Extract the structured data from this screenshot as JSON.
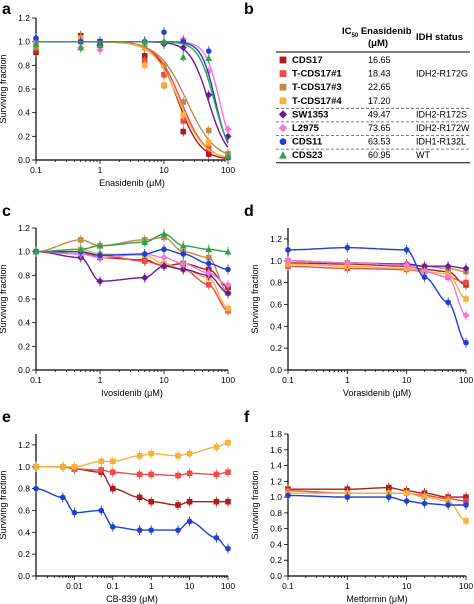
{
  "colors": {
    "CDS17": "#a81d1d",
    "T-CDS17#1": "#ee4a4a",
    "T-CDS17#3": "#c6884a",
    "T-CDS17#4": "#f6b23a",
    "SW1353": "#6a1b9a",
    "L2975": "#f07ad4",
    "CDS11": "#1f3fd1",
    "CDS23": "#2ca34a"
  },
  "table": {
    "header_ic50": "IC",
    "header_ic50_sub": "50",
    "header_ic50_rest": " Enasidenib",
    "header_unit": "(μM)",
    "header_status": "IDH status",
    "rows": [
      {
        "name": "CDS17",
        "ic50": "16.65",
        "status": "",
        "marker": "square"
      },
      {
        "name": "T-CDS17#1",
        "ic50": "18.43",
        "status": "IDH2-R172G",
        "marker": "square"
      },
      {
        "name": "T-CDS17#3",
        "ic50": "22.65",
        "status": "",
        "marker": "square"
      },
      {
        "name": "T-CDS17#4",
        "ic50": "17.20",
        "status": "",
        "marker": "square"
      },
      {
        "name": "SW1353",
        "ic50": "49.47",
        "status": "IDH2-R172S",
        "marker": "diamond"
      },
      {
        "name": "L2975",
        "ic50": "73.65",
        "status": "IDH2-R172W",
        "marker": "diamond"
      },
      {
        "name": "CDS11",
        "ic50": "63.53",
        "status": "IDH1-R132L",
        "marker": "circle"
      },
      {
        "name": "CDS23",
        "ic50": "60.95",
        "status": "WT",
        "marker": "triangle"
      }
    ]
  },
  "chart_data": [
    {
      "panel": "a",
      "type": "scatter",
      "scale_x": "log",
      "xlabel": "Enasidenib (μM)",
      "ylabel": "Surviving fraction",
      "xlim": [
        0.1,
        100
      ],
      "ylim": [
        0,
        1.2
      ],
      "xticks": [
        "0.1",
        "1",
        "10",
        "100"
      ],
      "yticks": [
        "0.0",
        "0.2",
        "0.4",
        "0.6",
        "0.8",
        "1.0",
        "1.2"
      ],
      "x": [
        0.1,
        0.5,
        1,
        5,
        10,
        20,
        50,
        100
      ],
      "series": [
        {
          "name": "CDS17",
          "marker": "square",
          "ic50": 16.65,
          "hill": 2.5,
          "values": [
            0.91,
            1.05,
            1.0,
            0.88,
            0.63,
            0.24,
            0.05,
            0.02
          ]
        },
        {
          "name": "T-CDS17#1",
          "marker": "square",
          "ic50": 18.43,
          "hill": 2.3,
          "values": [
            1.0,
            1.02,
            0.98,
            0.84,
            0.72,
            0.33,
            0.1,
            0.05
          ]
        },
        {
          "name": "T-CDS17#3",
          "marker": "square",
          "ic50": 22.65,
          "hill": 2.0,
          "values": [
            0.95,
            1.0,
            0.97,
            0.95,
            0.8,
            0.49,
            0.25,
            0.05
          ]
        },
        {
          "name": "T-CDS17#4",
          "marker": "square",
          "ic50": 17.2,
          "hill": 2.2,
          "values": [
            0.98,
            1.03,
            0.98,
            0.8,
            0.63,
            0.38,
            0.15,
            0.02
          ]
        },
        {
          "name": "SW1353",
          "marker": "diamond",
          "ic50": 49.47,
          "hill": 3.0,
          "values": [
            1.0,
            1.0,
            0.97,
            1.0,
            0.98,
            0.95,
            0.55,
            0.2
          ]
        },
        {
          "name": "L2975",
          "marker": "diamond",
          "ic50": 73.65,
          "hill": 4.0,
          "values": [
            1.0,
            0.95,
            0.93,
            1.0,
            1.0,
            1.02,
            0.75,
            0.26
          ]
        },
        {
          "name": "CDS11",
          "marker": "circle",
          "ic50": 63.53,
          "hill": 4.0,
          "values": [
            1.03,
            1.0,
            1.0,
            1.0,
            1.08,
            1.0,
            0.92,
            0.02
          ]
        },
        {
          "name": "CDS23",
          "marker": "triangle",
          "ic50": 60.95,
          "hill": 3.5,
          "values": [
            0.98,
            0.95,
            0.97,
            1.0,
            1.0,
            0.87,
            0.86,
            0.03
          ]
        }
      ]
    },
    {
      "panel": "c",
      "type": "scatter",
      "scale_x": "log",
      "xlabel": "Ivosidenib (μM)",
      "ylabel": "Surviving fraction",
      "xlim": [
        0.1,
        100
      ],
      "ylim": [
        0,
        1.2
      ],
      "xticks": [
        "0.1",
        "1",
        "10",
        "100"
      ],
      "yticks": [
        "0.0",
        "0.2",
        "0.4",
        "0.6",
        "0.8",
        "1.0",
        "1.2"
      ],
      "x": [
        0.1,
        0.5,
        1,
        5,
        10,
        20,
        50,
        100
      ],
      "series": [
        {
          "name": "CDS17",
          "marker": "square",
          "values": [
            1.0,
            1.0,
            0.95,
            0.93,
            0.88,
            0.9,
            0.85,
            0.7
          ]
        },
        {
          "name": "T-CDS17#1",
          "marker": "square",
          "values": [
            1.0,
            0.98,
            0.97,
            0.92,
            0.88,
            0.85,
            0.72,
            0.5
          ]
        },
        {
          "name": "T-CDS17#3",
          "marker": "square",
          "values": [
            1.0,
            1.1,
            1.05,
            1.1,
            1.12,
            1.0,
            0.95,
            0.65
          ]
        },
        {
          "name": "T-CDS17#4",
          "marker": "square",
          "values": [
            1.0,
            1.02,
            0.98,
            0.97,
            0.9,
            0.85,
            0.78,
            0.52
          ]
        },
        {
          "name": "SW1353",
          "marker": "diamond",
          "values": [
            1.0,
            0.95,
            0.75,
            0.78,
            0.88,
            0.85,
            0.8,
            0.65
          ]
        },
        {
          "name": "L2975",
          "marker": "diamond",
          "values": [
            1.0,
            0.98,
            0.95,
            0.98,
            0.95,
            0.9,
            0.82,
            0.72
          ]
        },
        {
          "name": "CDS11",
          "marker": "circle",
          "values": [
            1.0,
            1.0,
            0.97,
            0.98,
            1.02,
            0.98,
            0.9,
            0.85
          ]
        },
        {
          "name": "CDS23",
          "marker": "triangle",
          "values": [
            1.0,
            1.02,
            1.05,
            1.08,
            1.15,
            1.05,
            1.02,
            1.0
          ]
        }
      ]
    },
    {
      "panel": "d",
      "type": "scatter",
      "scale_x": "log",
      "xlabel": "Vorasidenib (μM)",
      "ylabel": "Surviving fraction",
      "xlim": [
        0.1,
        100
      ],
      "ylim": [
        0,
        1.3
      ],
      "xticks": [
        "0.1",
        "1",
        "10",
        "100"
      ],
      "yticks": [
        "0.0",
        "0.2",
        "0.4",
        "0.6",
        "0.8",
        "1.0",
        "1.2"
      ],
      "x": [
        0.1,
        1,
        10,
        20,
        50,
        100
      ],
      "series": [
        {
          "name": "CDS17",
          "marker": "square",
          "values": [
            0.98,
            0.97,
            0.95,
            0.92,
            0.9,
            0.78
          ]
        },
        {
          "name": "T-CDS17#1",
          "marker": "square",
          "values": [
            0.95,
            0.93,
            0.92,
            0.9,
            0.85,
            0.8
          ]
        },
        {
          "name": "T-CDS17#3",
          "marker": "square",
          "values": [
            1.0,
            0.98,
            0.96,
            0.95,
            0.93,
            0.9
          ]
        },
        {
          "name": "T-CDS17#4",
          "marker": "square",
          "values": [
            0.97,
            0.95,
            0.93,
            0.9,
            0.88,
            0.65
          ]
        },
        {
          "name": "SW1353",
          "marker": "diamond",
          "values": [
            1.0,
            0.98,
            0.97,
            0.95,
            0.95,
            0.93
          ]
        },
        {
          "name": "L2975",
          "marker": "diamond",
          "values": [
            1.0,
            0.98,
            0.96,
            0.9,
            0.85,
            0.5
          ]
        },
        {
          "name": "CDS11",
          "marker": "circle",
          "values": [
            1.1,
            1.12,
            1.1,
            0.85,
            0.62,
            0.25
          ]
        }
      ]
    },
    {
      "panel": "e",
      "type": "scatter",
      "scale_x": "log",
      "xlabel": "CB-839 (μM)",
      "ylabel": "Surviving fraction",
      "xlim": [
        0.001,
        100
      ],
      "ylim": [
        0,
        1.3
      ],
      "xticks": [
        "0.01",
        "0.1",
        "1",
        "10",
        "100"
      ],
      "yticks": [
        "0.0",
        "0.2",
        "0.4",
        "0.6",
        "0.8",
        "1.0",
        "1.2"
      ],
      "x": [
        0.001,
        0.005,
        0.01,
        0.05,
        0.1,
        0.5,
        1,
        5,
        10,
        50,
        100
      ],
      "series": [
        {
          "name": "CDS17",
          "marker": "square",
          "values": [
            1.0,
            1.0,
            0.98,
            0.95,
            0.8,
            0.72,
            0.68,
            0.65,
            0.68,
            0.68,
            0.68
          ]
        },
        {
          "name": "T-CDS17#1",
          "marker": "square",
          "values": [
            1.0,
            1.0,
            0.98,
            0.97,
            0.95,
            0.93,
            0.93,
            0.92,
            0.94,
            0.93,
            0.95
          ]
        },
        {
          "name": "T-CDS17#4",
          "marker": "square",
          "values": [
            1.0,
            1.0,
            1.0,
            1.05,
            1.05,
            1.1,
            1.12,
            1.1,
            1.12,
            1.18,
            1.22
          ]
        },
        {
          "name": "CDS11",
          "marker": "circle",
          "values": [
            0.8,
            0.72,
            0.58,
            0.6,
            0.45,
            0.42,
            0.42,
            0.42,
            0.5,
            0.35,
            0.25
          ]
        }
      ]
    },
    {
      "panel": "f",
      "type": "scatter",
      "scale_x": "log",
      "xlabel": "Metformin (μM)",
      "ylabel": "Surviving fraction",
      "xlim": [
        0.1,
        100
      ],
      "ylim": [
        0,
        1.8
      ],
      "xticks": [
        "0.1",
        "1",
        "10",
        "100"
      ],
      "yticks": [
        "0.0",
        "0.2",
        "0.4",
        "0.6",
        "0.8",
        "1.0",
        "1.2",
        "1.4",
        "1.6",
        "1.8"
      ],
      "x": [
        0.1,
        1,
        5,
        10,
        20,
        50,
        100
      ],
      "series": [
        {
          "name": "CDS17",
          "marker": "square",
          "values": [
            1.1,
            1.1,
            1.12,
            1.08,
            1.05,
            1.0,
            1.0
          ]
        },
        {
          "name": "T-CDS17#1",
          "marker": "square",
          "values": [
            1.08,
            1.05,
            1.05,
            1.05,
            1.02,
            0.98,
            0.95
          ]
        },
        {
          "name": "T-CDS17#4",
          "marker": "square",
          "values": [
            1.05,
            1.05,
            1.05,
            1.05,
            1.0,
            0.95,
            0.7
          ]
        },
        {
          "name": "CDS11",
          "marker": "circle",
          "values": [
            1.02,
            1.0,
            1.0,
            0.95,
            0.92,
            0.9,
            0.9
          ]
        }
      ]
    }
  ]
}
